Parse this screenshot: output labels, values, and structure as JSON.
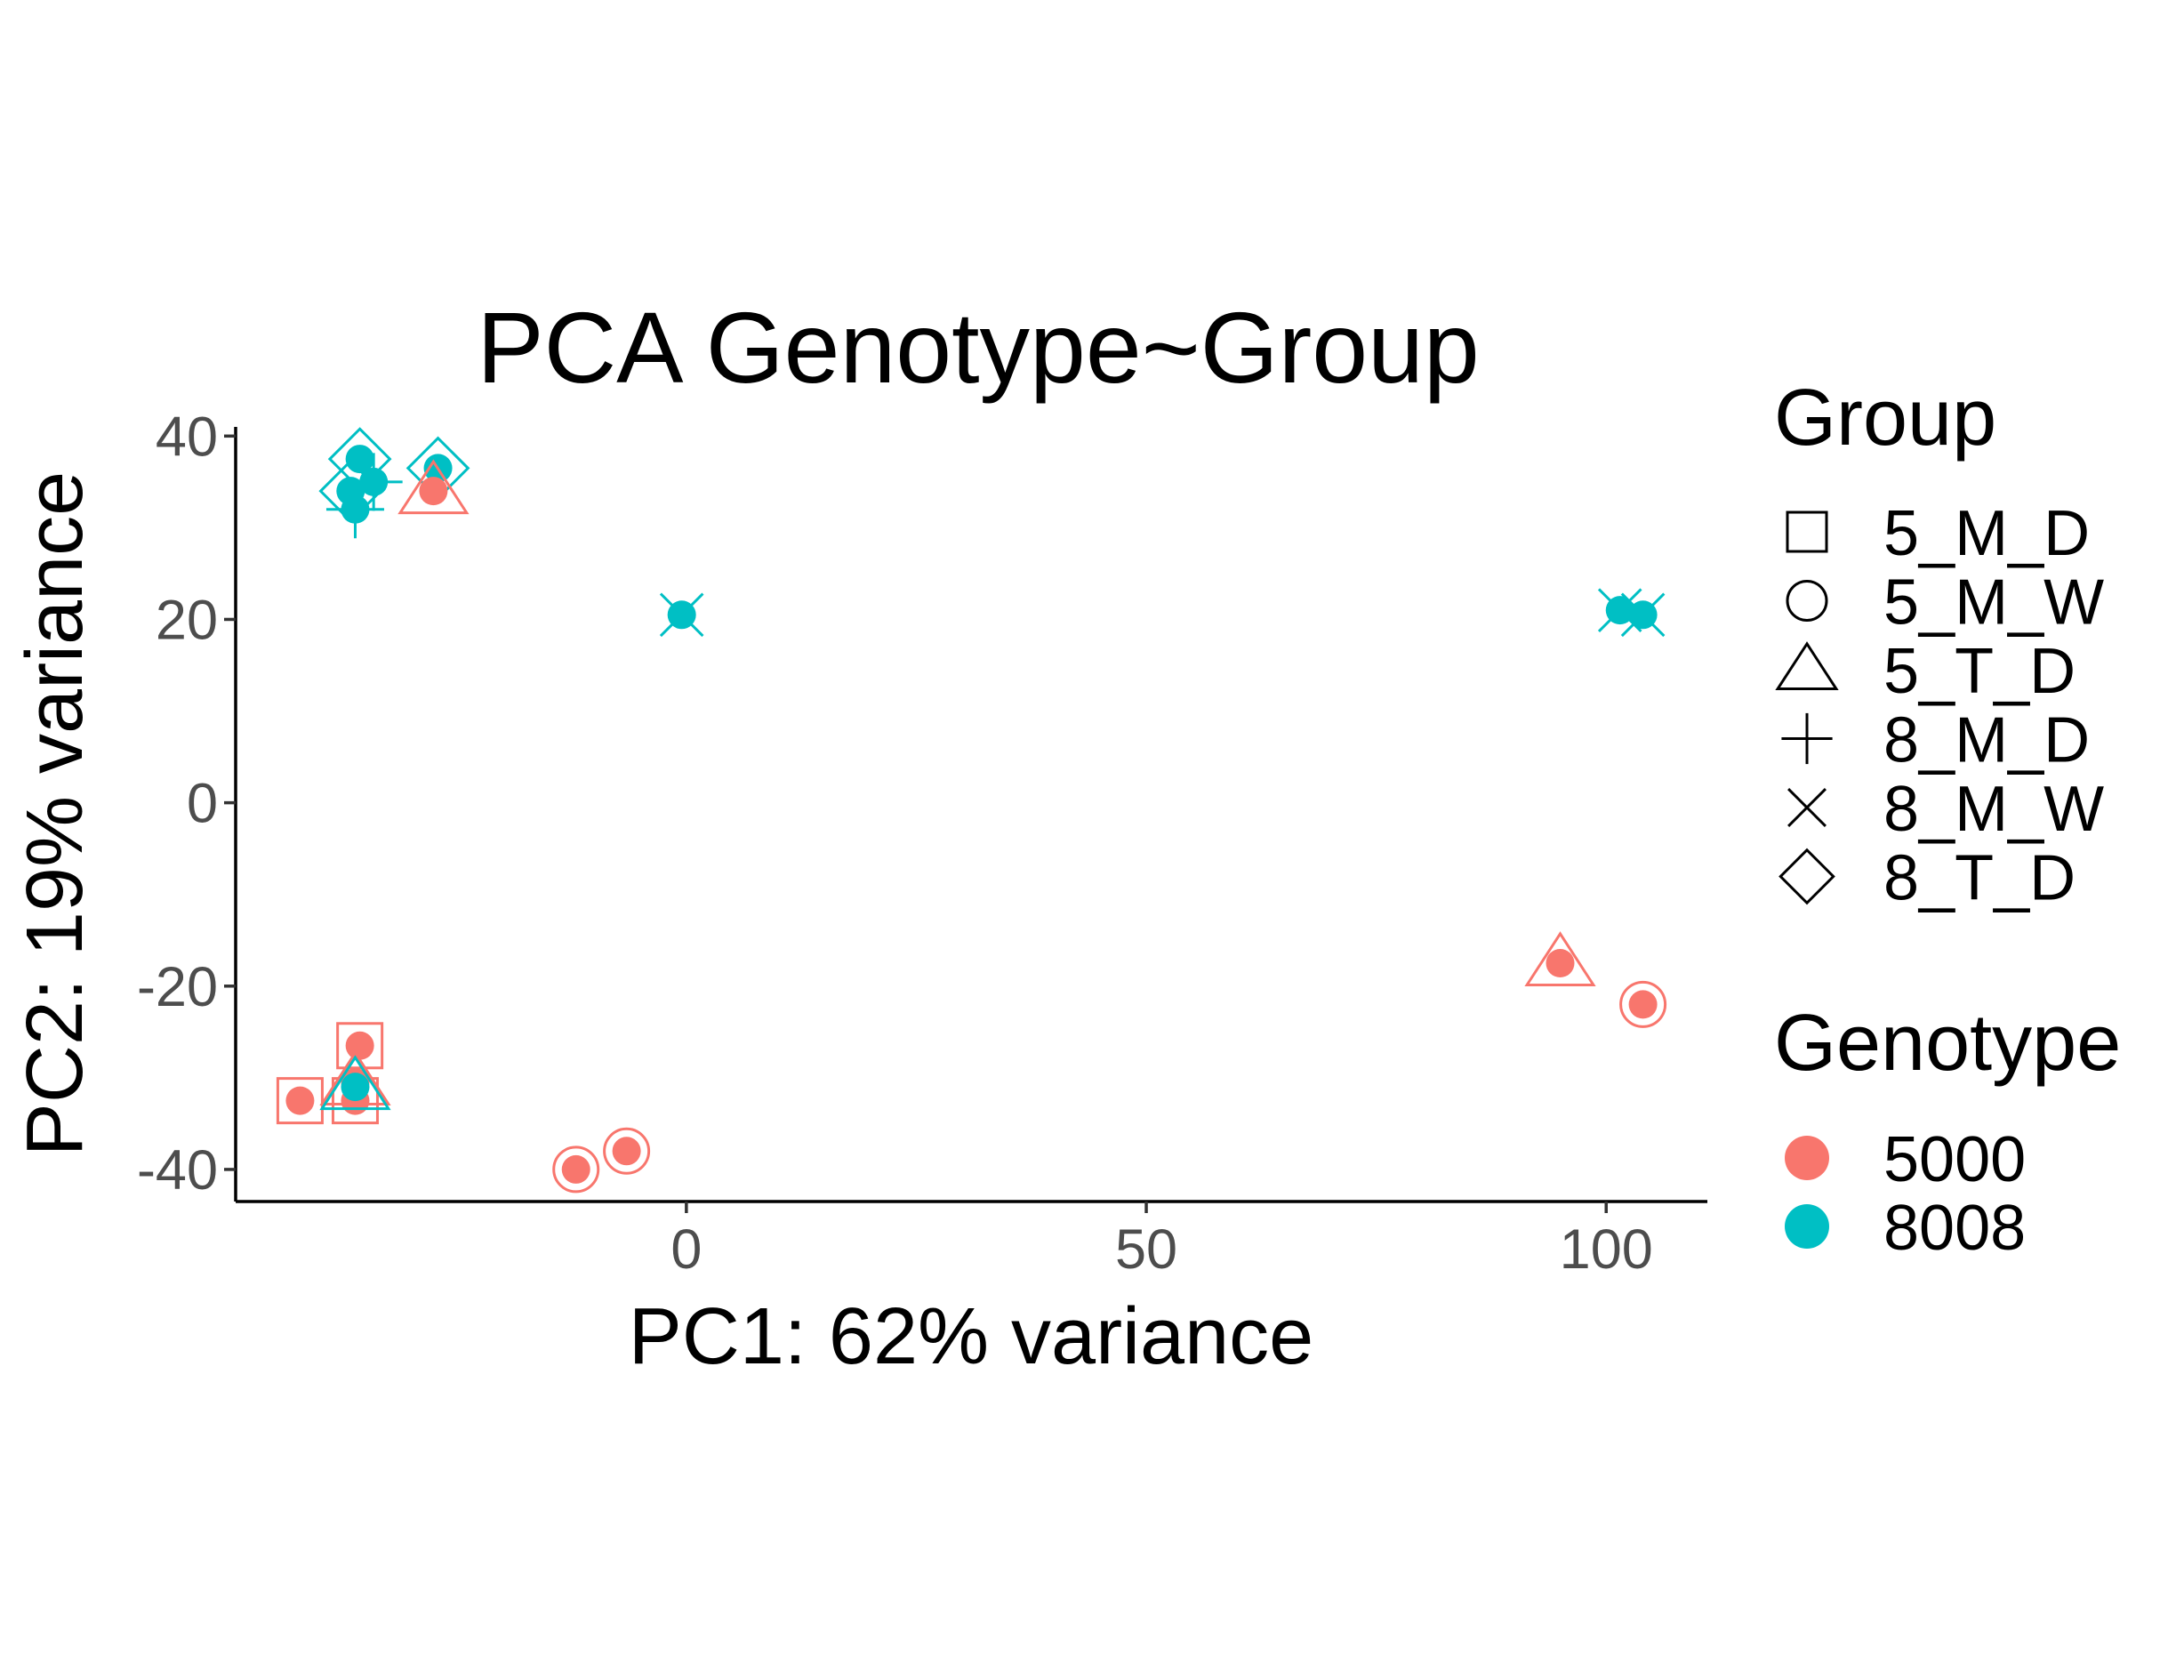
{
  "chart_data": {
    "type": "scatter",
    "title": "PCA Genotype~Group",
    "xlabel": "PC1: 62% variance",
    "ylabel": "PC2: 19% variance",
    "xlim": [
      -49,
      111
    ],
    "ylim": [
      -43.5,
      41
    ],
    "x_ticks": [
      0,
      50,
      100
    ],
    "x_tick_labels": [
      "0",
      "50",
      "100"
    ],
    "y_ticks": [
      -40,
      -20,
      0,
      20,
      40
    ],
    "y_tick_labels": [
      "-40",
      "-20",
      "0",
      "20",
      "40"
    ],
    "grid": false,
    "legend_position": "right",
    "legends": {
      "group": {
        "title": "Group",
        "entries": [
          {
            "label": "5_M_D",
            "shape": "square"
          },
          {
            "label": "5_M_W",
            "shape": "circle"
          },
          {
            "label": "5_T_D",
            "shape": "triangle"
          },
          {
            "label": "8_M_D",
            "shape": "plus"
          },
          {
            "label": "8_M_W",
            "shape": "cross"
          },
          {
            "label": "8_T_D",
            "shape": "diamond"
          }
        ]
      },
      "genotype": {
        "title": "Genotype",
        "entries": [
          {
            "label": "5000",
            "color": "#F8766D"
          },
          {
            "label": "8008",
            "color": "#00BFC4"
          }
        ]
      }
    },
    "points": [
      {
        "x": -35.5,
        "y": 37.5,
        "genotype": "8008",
        "group": "8_T_D"
      },
      {
        "x": -36.5,
        "y": 34,
        "genotype": "8008",
        "group": "8_T_D"
      },
      {
        "x": -27,
        "y": 36.5,
        "genotype": "8008",
        "group": "8_T_D"
      },
      {
        "x": -34,
        "y": 35,
        "genotype": "8008",
        "group": "8_M_D"
      },
      {
        "x": -36,
        "y": 32,
        "genotype": "8008",
        "group": "8_M_D"
      },
      {
        "x": -27.5,
        "y": 34,
        "genotype": "5000",
        "group": "5_T_D"
      },
      {
        "x": -0.5,
        "y": 20.5,
        "genotype": "8008",
        "group": "8_M_W"
      },
      {
        "x": 101.5,
        "y": 21,
        "genotype": "8008",
        "group": "8_M_W"
      },
      {
        "x": 104,
        "y": 20.5,
        "genotype": "8008",
        "group": "8_M_W"
      },
      {
        "x": 95,
        "y": -17.5,
        "genotype": "5000",
        "group": "5_T_D"
      },
      {
        "x": 104,
        "y": -22,
        "genotype": "5000",
        "group": "5_M_W"
      },
      {
        "x": -35.5,
        "y": -26.5,
        "genotype": "5000",
        "group": "5_M_D"
      },
      {
        "x": -42,
        "y": -32.5,
        "genotype": "5000",
        "group": "5_M_D"
      },
      {
        "x": -36,
        "y": -32.5,
        "genotype": "5000",
        "group": "5_M_D"
      },
      {
        "x": -36,
        "y": -30.5,
        "genotype": "5000",
        "group": "5_T_D"
      },
      {
        "x": -36,
        "y": -31,
        "genotype": "8008",
        "group": "5_T_D"
      },
      {
        "x": -12,
        "y": -40,
        "genotype": "5000",
        "group": "5_M_W"
      },
      {
        "x": -6.5,
        "y": -38,
        "genotype": "5000",
        "group": "5_M_W"
      }
    ]
  }
}
